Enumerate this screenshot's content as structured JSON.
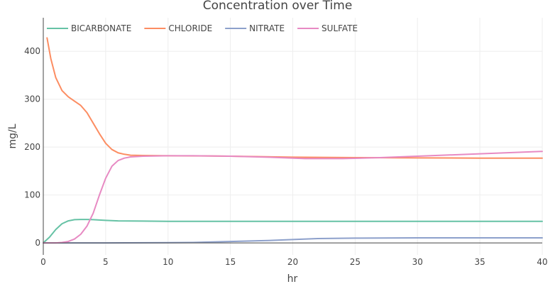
{
  "chart_data": {
    "type": "line",
    "title": "Concentration over Time",
    "xlabel": "hr",
    "ylabel": "mg/L",
    "xlim": [
      0,
      40
    ],
    "ylim": [
      -25,
      470
    ],
    "x_ticks": [
      0,
      5,
      10,
      15,
      20,
      25,
      30,
      35,
      40
    ],
    "y_ticks": [
      0,
      100,
      200,
      300,
      400
    ],
    "grid": true,
    "legend_position": "top-left, horizontal",
    "series": [
      {
        "name": "BICARBONATE",
        "color": "#66c2a5",
        "x": [
          0,
          0.5,
          1,
          1.5,
          2,
          2.5,
          3,
          3.5,
          4,
          5,
          6,
          8,
          10,
          15,
          20,
          25,
          30,
          35,
          40
        ],
        "y": [
          0,
          12,
          28,
          40,
          46,
          48.5,
          49,
          49,
          48.5,
          47,
          46,
          45.5,
          45,
          45,
          45,
          45,
          45,
          45,
          45
        ]
      },
      {
        "name": "CHLORIDE",
        "color": "#fc8d62",
        "x": [
          0.3,
          0.6,
          1,
          1.5,
          2,
          2.5,
          3,
          3.5,
          4,
          4.5,
          5,
          5.5,
          6,
          6.5,
          7,
          8,
          10,
          13,
          15,
          20,
          25,
          30,
          35,
          40
        ],
        "y": [
          428,
          385,
          345,
          318,
          305,
          296,
          287,
          272,
          250,
          228,
          208,
          195,
          188,
          185,
          183,
          182.5,
          182,
          181.5,
          181,
          179,
          178,
          177.5,
          177,
          177
        ]
      },
      {
        "name": "NITRATE",
        "color": "#8da0cb",
        "x": [
          0,
          5,
          10,
          12,
          15,
          18,
          20,
          22,
          25,
          30,
          35,
          40
        ],
        "y": [
          0,
          0,
          0.5,
          1,
          3,
          5,
          7,
          9,
          10,
          10.5,
          10.5,
          10.5
        ]
      },
      {
        "name": "SULFATE",
        "color": "#e78ac3",
        "x": [
          0,
          1,
          1.5,
          2,
          2.5,
          3,
          3.5,
          4,
          4.5,
          5,
          5.5,
          6,
          6.5,
          7,
          8,
          10,
          12,
          15,
          18,
          21,
          24,
          27,
          30,
          35,
          40
        ],
        "y": [
          0,
          0,
          1,
          3,
          8,
          18,
          35,
          62,
          100,
          135,
          160,
          172,
          177,
          179.5,
          181,
          182,
          182,
          181,
          179,
          176,
          176,
          178,
          181,
          186,
          191
        ]
      }
    ]
  }
}
